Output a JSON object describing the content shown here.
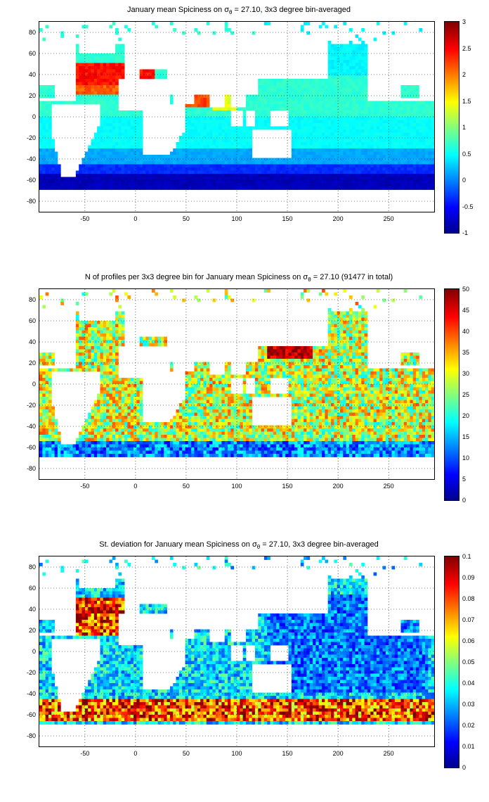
{
  "maps": [
    {
      "title_pre": "January mean Spiciness on σ",
      "title_sub": "θ",
      "title_post": " = 27.10, 3x3 degree bin-averaged",
      "colorbar_ticks": [
        "3",
        "2.5",
        "2",
        "1.5",
        "1",
        "0.5",
        "0",
        "-0.5",
        "-1"
      ],
      "colorscale": "jet",
      "value_range": [
        -1,
        3
      ]
    },
    {
      "title_pre": "N of profiles per 3x3 degree bin for January mean Spiciness on σ",
      "title_sub": "θ",
      "title_post": " = 27.10 (91477 in total)",
      "colorbar_ticks": [
        "50",
        "45",
        "40",
        "35",
        "30",
        "25",
        "20",
        "15",
        "10",
        "5",
        "0"
      ],
      "colorscale": "jet",
      "value_range": [
        0,
        50
      ]
    },
    {
      "title_pre": "St. deviation for January mean Spiciness on σ",
      "title_sub": "θ",
      "title_post": " = 27.10, 3x3 degree bin-averaged",
      "colorbar_ticks": [
        "0.1",
        "0.09",
        "0.08",
        "0.07",
        "0.06",
        "0.05",
        "0.04",
        "0.03",
        "0.02",
        "0.01",
        "0"
      ],
      "colorscale": "jet",
      "value_range": [
        0,
        0.1
      ]
    }
  ],
  "axes": {
    "x_ticks": [
      "-50",
      "0",
      "50",
      "100",
      "150",
      "200",
      "250"
    ],
    "y_ticks": [
      "80",
      "60",
      "40",
      "20",
      "0",
      "-20",
      "-40",
      "-60",
      "-80"
    ],
    "x_values": [
      -50,
      0,
      50,
      100,
      150,
      200,
      250
    ],
    "y_values": [
      80,
      60,
      40,
      20,
      0,
      -20,
      -40,
      -60,
      -80
    ],
    "xlim": [
      -95,
      295
    ],
    "ylim": [
      -90,
      90
    ],
    "grid": "dotted"
  }
}
